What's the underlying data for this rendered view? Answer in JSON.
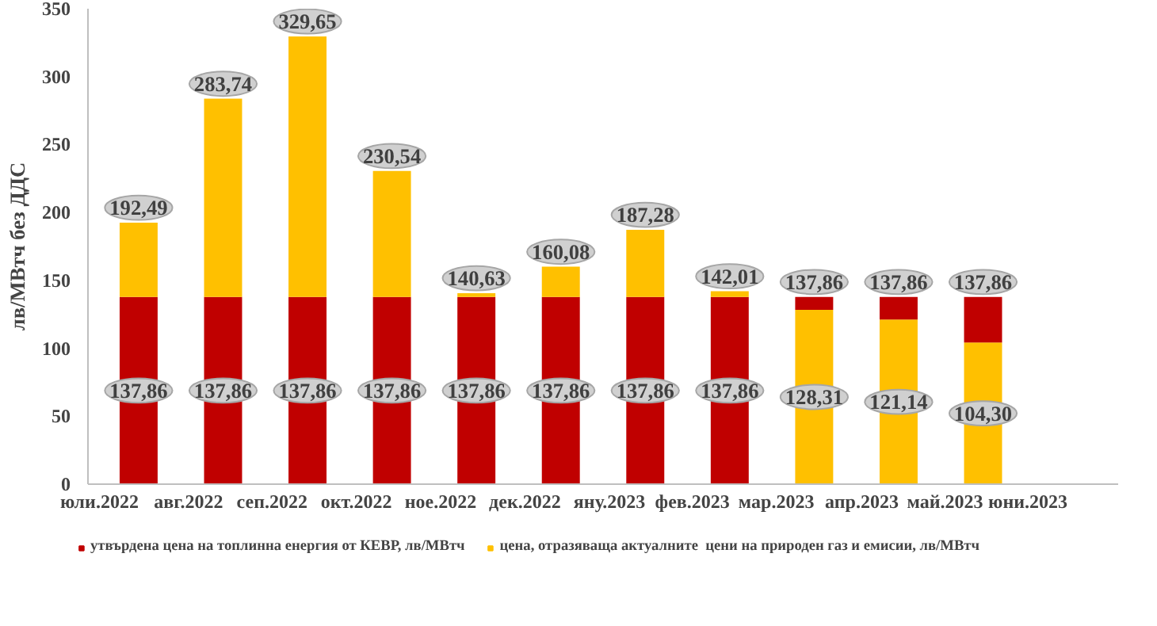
{
  "chart_data": {
    "type": "bar",
    "stacked": true,
    "ylabel": "лв/МВтч без ДДС",
    "categories": [
      "юли.2022",
      "авг.2022",
      "сеп.2022",
      "окт.2022",
      "ное.2022",
      "дек.2022",
      "яну.2023",
      "фев.2023",
      "мар.2023",
      "апр.2023",
      "май.2023",
      "юни.2023"
    ],
    "series": [
      {
        "name": "утвърдена цена на топлинна енергия от КЕВР, лв/МВтч",
        "color": "#c00000",
        "values": [
          137.86,
          137.86,
          137.86,
          137.86,
          137.86,
          137.86,
          137.86,
          137.86,
          null,
          null,
          null,
          null
        ],
        "value_labels": [
          "137,86",
          "137,86",
          "137,86",
          "137,86",
          "137,86",
          "137,86",
          "137,86",
          "137,86",
          null,
          null,
          null,
          null
        ]
      },
      {
        "name": "цена, отразяваща актуалните  цени на природен газ и емисии, лв/МВтч",
        "color": "#ffc000",
        "values": [
          54.63,
          145.88,
          191.79,
          92.68,
          2.77,
          22.22,
          49.42,
          4.15,
          128.31,
          121.14,
          104.3,
          null
        ],
        "value_labels": [
          null,
          null,
          null,
          null,
          null,
          null,
          null,
          null,
          "128,31",
          "121,14",
          "104,30",
          null
        ]
      },
      {
        "color": "#c00000",
        "values": [
          null,
          null,
          null,
          null,
          null,
          null,
          null,
          null,
          9.55,
          16.72,
          33.56,
          null
        ]
      }
    ],
    "totals": [
      "192,49",
      "283,74",
      "329,65",
      "230,54",
      "140,63",
      "160,08",
      "187,28",
      "142,01",
      "137,86",
      "137,86",
      "137,86",
      null
    ],
    "ylim": [
      0,
      350
    ],
    "yticks": [
      0,
      50,
      100,
      150,
      200,
      250,
      300,
      350
    ],
    "grid": false,
    "legend": "bottom"
  }
}
